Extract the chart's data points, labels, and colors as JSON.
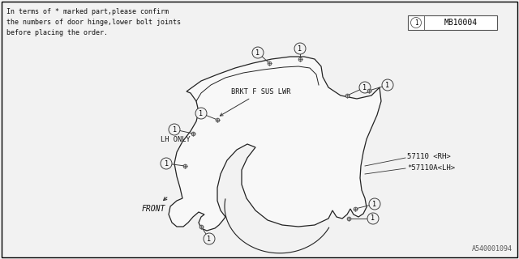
{
  "background_color": "#f2f2f2",
  "border_color": "#000000",
  "note_text": "In terms of * marked part,please confirm\nthe numbers of door hinge,lower bolt joints\nbefore placing the order.",
  "part_code_box": "MB10004",
  "part_label_1": "57110 <RH>",
  "part_label_2": "*57110A<LH>",
  "brkt_label": "BRKT F SUS LWR",
  "lh_only_label": "LH ONLY",
  "front_label": "FRONT",
  "bottom_label": "A540001094",
  "callout_number": "1",
  "fender_color": "#f8f8f8",
  "fender_stroke": "#222222",
  "line_color": "#222222"
}
